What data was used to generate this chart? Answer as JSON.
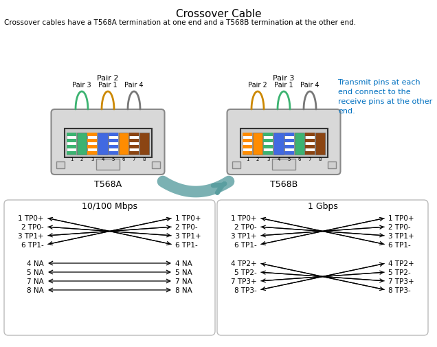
{
  "title": "Crossover Cable",
  "subtitle": "Crossover cables have a T568A termination at one end and a T568B termination at the other end.",
  "side_note": "Transmit pins at each\nend connect to the\nreceive pins at the other\nend.",
  "side_note_color": "#0070C0",
  "t568a_label": "T568A",
  "t568b_label": "T568B",
  "left_top_label": "Pair 2",
  "right_top_label": "Pair 3",
  "left_pair_labels": [
    [
      "Pair 3",
      "#3CB371",
      -38
    ],
    [
      "Pair 1",
      "#CC8800",
      0
    ],
    [
      "Pair 4",
      "#777777",
      38
    ]
  ],
  "right_pair_labels": [
    [
      "Pair 2",
      "#CC8800",
      -38
    ],
    [
      "Pair 1",
      "#3CB371",
      0
    ],
    [
      "Pair 4",
      "#777777",
      38
    ]
  ],
  "t568a_pin_colors": [
    [
      "white",
      "#3CB371"
    ],
    [
      "#3CB371",
      null
    ],
    [
      "white",
      "#FF8C00"
    ],
    [
      "#4169E1",
      null
    ],
    [
      "white",
      "#4169E1"
    ],
    [
      "#FF8C00",
      null
    ],
    [
      "white",
      "#8B4513"
    ],
    [
      "#8B4513",
      null
    ]
  ],
  "t568b_pin_colors": [
    [
      "white",
      "#FF8C00"
    ],
    [
      "#FF8C00",
      null
    ],
    [
      "white",
      "#3CB371"
    ],
    [
      "#4169E1",
      null
    ],
    [
      "white",
      "#4169E1"
    ],
    [
      "#3CB371",
      null
    ],
    [
      "white",
      "#8B4513"
    ],
    [
      "#8B4513",
      null
    ]
  ],
  "arrow_color": "#5A9EA0",
  "low_speed_title": "10/100 Mbps",
  "high_speed_title": "1 Gbps",
  "low_group1": [
    "1 TP0+",
    "2 TP0-",
    "3 TP1+",
    "6 TP1-"
  ],
  "low_group2": [
    "4 NA",
    "5 NA",
    "7 NA",
    "8 NA"
  ],
  "high_group1": [
    "1 TP0+",
    "2 TP0-",
    "3 TP1+",
    "6 TP1-"
  ],
  "high_group2": [
    "4 TP2+",
    "5 TP2-",
    "7 TP3+",
    "8 TP3-"
  ],
  "bg_color": "#FFFFFF"
}
